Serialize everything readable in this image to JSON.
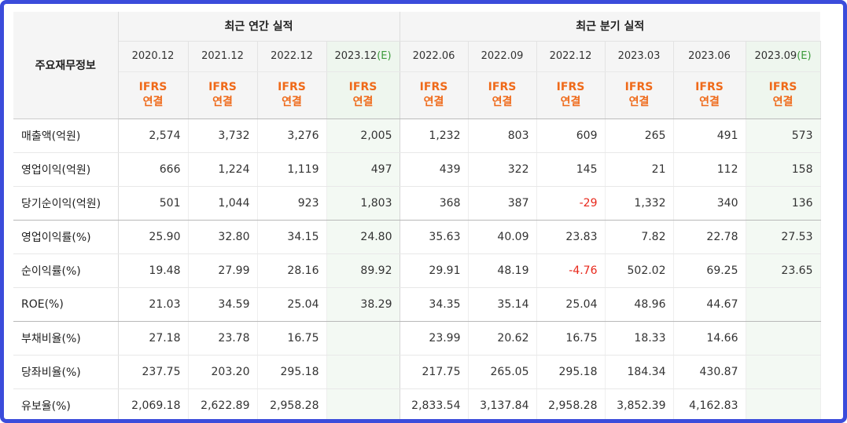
{
  "table": {
    "corner_label": "주요재무정보",
    "groups": [
      "최근 연간 실적",
      "최근 분기 실적"
    ],
    "annual_periods": [
      {
        "year": "2020.12",
        "tag": ""
      },
      {
        "year": "2021.12",
        "tag": ""
      },
      {
        "year": "2022.12",
        "tag": ""
      },
      {
        "year": "2023.12",
        "tag": "(E)"
      }
    ],
    "quarter_periods": [
      {
        "year": "2022.06",
        "tag": ""
      },
      {
        "year": "2022.09",
        "tag": ""
      },
      {
        "year": "2022.12",
        "tag": ""
      },
      {
        "year": "2023.03",
        "tag": ""
      },
      {
        "year": "2023.06",
        "tag": ""
      },
      {
        "year": "2023.09",
        "tag": "(E)"
      }
    ],
    "type_line1": "IFRS",
    "type_line2": "연결",
    "rows": [
      {
        "label": "매출액(억원)",
        "values": [
          "2,574",
          "3,732",
          "3,276",
          "2,005",
          "1,232",
          "803",
          "609",
          "265",
          "491",
          "573"
        ]
      },
      {
        "label": "영업이익(억원)",
        "values": [
          "666",
          "1,224",
          "1,119",
          "497",
          "439",
          "322",
          "145",
          "21",
          "112",
          "158"
        ]
      },
      {
        "label": "당기순이익(억원)",
        "values": [
          "501",
          "1,044",
          "923",
          "1,803",
          "368",
          "387",
          "-29",
          "1,332",
          "340",
          "136"
        ]
      },
      {
        "label": "영업이익률(%)",
        "values": [
          "25.90",
          "32.80",
          "34.15",
          "24.80",
          "35.63",
          "40.09",
          "23.83",
          "7.82",
          "22.78",
          "27.53"
        ]
      },
      {
        "label": "순이익률(%)",
        "values": [
          "19.48",
          "27.99",
          "28.16",
          "89.92",
          "29.91",
          "48.19",
          "-4.76",
          "502.02",
          "69.25",
          "23.65"
        ]
      },
      {
        "label": "ROE(%)",
        "values": [
          "21.03",
          "34.59",
          "25.04",
          "38.29",
          "34.35",
          "35.14",
          "25.04",
          "48.96",
          "44.67",
          ""
        ]
      },
      {
        "label": "부채비율(%)",
        "values": [
          "27.18",
          "23.78",
          "16.75",
          "",
          "23.99",
          "20.62",
          "16.75",
          "18.33",
          "14.66",
          ""
        ]
      },
      {
        "label": "당좌비율(%)",
        "values": [
          "237.75",
          "203.20",
          "295.18",
          "",
          "217.75",
          "265.05",
          "295.18",
          "184.34",
          "430.87",
          ""
        ]
      },
      {
        "label": "유보율(%)",
        "values": [
          "2,069.18",
          "2,622.89",
          "2,958.28",
          "",
          "2,833.54",
          "3,137.84",
          "2,958.28",
          "3,852.39",
          "4,162.83",
          ""
        ]
      }
    ],
    "colors": {
      "frame": "#3b4cdb",
      "type_text": "#ef6a1a",
      "negative": "#e8281b",
      "estimate_bg": "#eef6ee"
    }
  }
}
